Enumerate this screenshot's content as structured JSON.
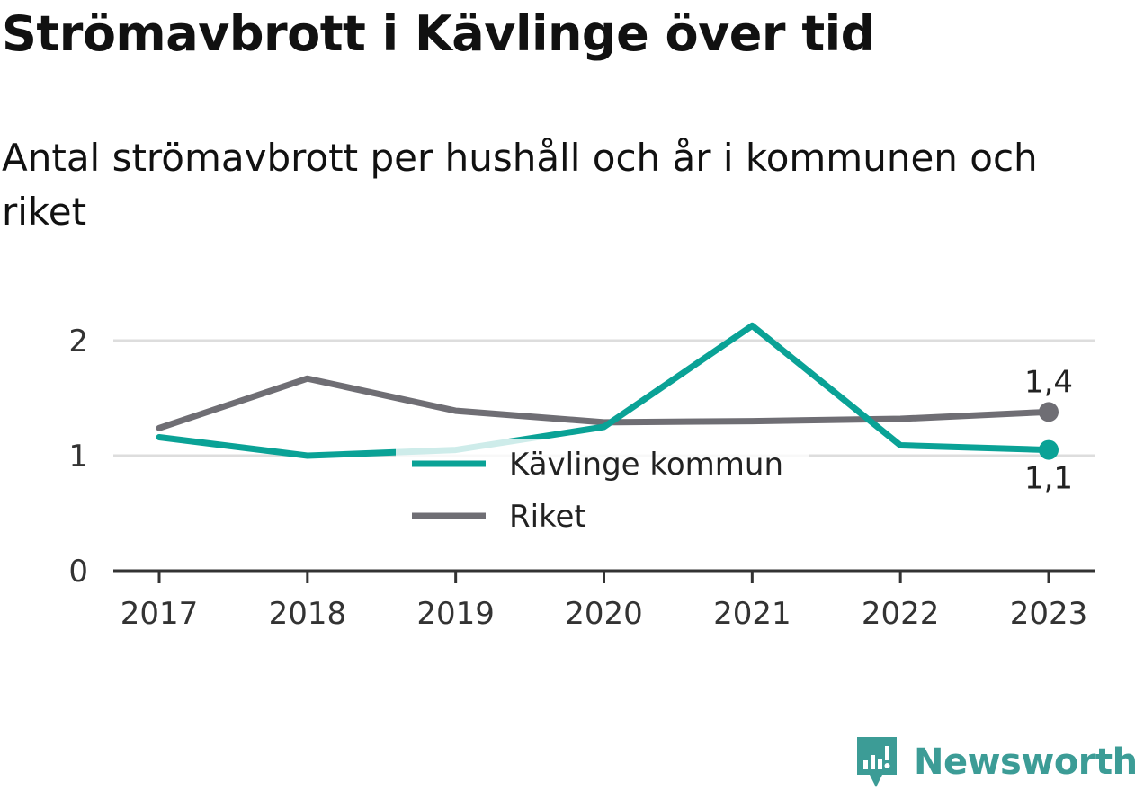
{
  "chart_data": {
    "type": "line",
    "title": "Strömavbrott i Kävlinge över tid",
    "subtitle": "Antal strömavbrott per hushåll och år i kommunen och riket",
    "x": [
      "2017",
      "2018",
      "2019",
      "2020",
      "2021",
      "2022",
      "2023"
    ],
    "series": [
      {
        "name": "Kävlinge kommun",
        "color": "#0aa296",
        "values": [
          1.16,
          1.0,
          1.05,
          1.25,
          2.13,
          1.09,
          1.05
        ],
        "end_label": "1,1"
      },
      {
        "name": "Riket",
        "color": "#6f6e74",
        "values": [
          1.24,
          1.67,
          1.39,
          1.29,
          1.3,
          1.32,
          1.38
        ],
        "end_label": "1,4"
      }
    ],
    "yticks": [
      {
        "value": 0,
        "label": "0"
      },
      {
        "value": 1,
        "label": "1"
      },
      {
        "value": 2,
        "label": "2"
      }
    ],
    "ylim": [
      0,
      2.2
    ],
    "grid": true,
    "legend": "center"
  },
  "brand": {
    "name": "Newsworthy",
    "icon": "newsworthy-logo-icon",
    "color": "#3c9c96"
  }
}
